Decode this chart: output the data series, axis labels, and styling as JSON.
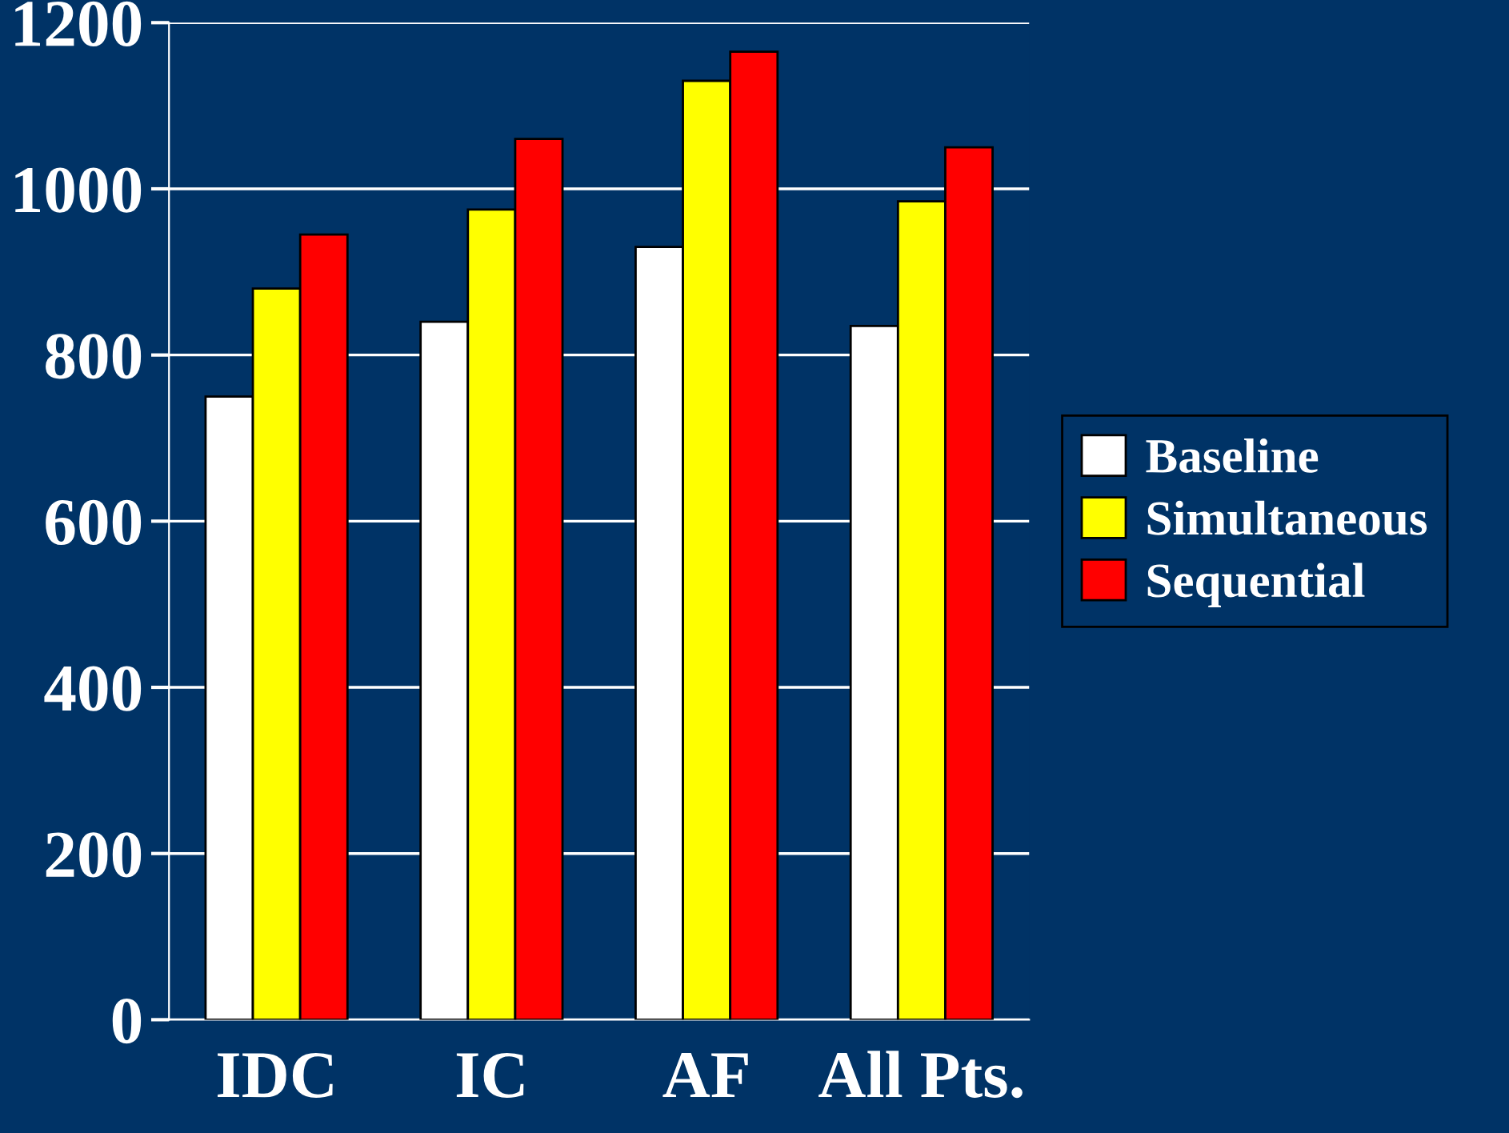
{
  "chart_data": {
    "type": "bar",
    "categories": [
      "IDC",
      "IC",
      "AF",
      "All Pts."
    ],
    "series": [
      {
        "name": "Baseline",
        "color": "#ffffff",
        "values": [
          750,
          840,
          930,
          835
        ]
      },
      {
        "name": "Simultaneous",
        "color": "#ffff00",
        "values": [
          880,
          975,
          1130,
          985
        ]
      },
      {
        "name": "Sequential",
        "color": "#ff0000",
        "values": [
          945,
          1060,
          1165,
          1050
        ]
      }
    ],
    "ylim": [
      0,
      1200
    ],
    "yticks": [
      0,
      200,
      400,
      600,
      800,
      1000,
      1200
    ],
    "grid": "y",
    "legend": "right"
  }
}
